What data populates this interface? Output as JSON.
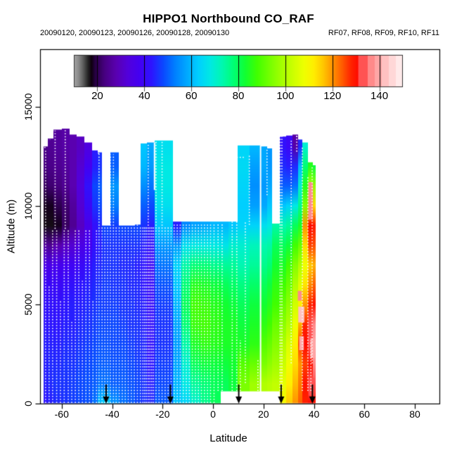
{
  "header": {
    "title": "HIPPO1 Northbound CO_RAF",
    "dates": "20090120, 20090123, 20090126, 20090128, 20090130",
    "flights": "RF07, RF08, RF09, RF10, RF11"
  },
  "axes": {
    "x": {
      "label": "Latitude",
      "ticks": [
        -60,
        -40,
        -20,
        0,
        20,
        40,
        60,
        80
      ],
      "range": [
        -68.5,
        89.7
      ]
    },
    "y": {
      "label": "Altitude (m)",
      "ticks": [
        0,
        5000,
        10000,
        15000
      ],
      "range": [
        0,
        17900
      ]
    }
  },
  "colorbar": {
    "ticks": [
      20,
      40,
      60,
      80,
      100,
      120,
      140
    ],
    "range": [
      10,
      150
    ],
    "stops": [
      [
        10,
        "#a6a6a6"
      ],
      [
        12,
        "#8a8a8a"
      ],
      [
        14,
        "#5c5c5c"
      ],
      [
        16,
        "#262626"
      ],
      [
        17.5,
        "#0d000d"
      ],
      [
        19,
        "#260040"
      ],
      [
        23,
        "#470080"
      ],
      [
        28,
        "#5a00b0"
      ],
      [
        33,
        "#5200dc"
      ],
      [
        38,
        "#4400f2"
      ],
      [
        43,
        "#2e14ff"
      ],
      [
        48,
        "#0b48ff"
      ],
      [
        53,
        "#007fff"
      ],
      [
        58,
        "#00a8ff"
      ],
      [
        63,
        "#00cfff"
      ],
      [
        68,
        "#00e9e4"
      ],
      [
        73,
        "#00f8b2"
      ],
      [
        78,
        "#00ff74"
      ],
      [
        83,
        "#12ff31"
      ],
      [
        88,
        "#41ff00"
      ],
      [
        93,
        "#72ff00"
      ],
      [
        98,
        "#a0ff00"
      ],
      [
        103,
        "#caff00"
      ],
      [
        108,
        "#efff00"
      ],
      [
        112,
        "#ffef00"
      ],
      [
        116,
        "#ffc800"
      ],
      [
        120,
        "#ff9400"
      ],
      [
        124,
        "#ff5e00"
      ],
      [
        128,
        "#ff2300"
      ],
      [
        131,
        "#ff0a00"
      ],
      [
        131.01,
        "#ff5353"
      ],
      [
        135,
        "#ff5353"
      ],
      [
        135.01,
        "#ff8a8a"
      ],
      [
        138,
        "#ff8a8a"
      ],
      [
        138.01,
        "#ffa6a6"
      ],
      [
        141,
        "#ffa6a6"
      ],
      [
        141.01,
        "#ffc1c1"
      ],
      [
        144,
        "#ffc1c1"
      ],
      [
        144.01,
        "#ffd7d7"
      ],
      [
        147,
        "#ffd7d7"
      ],
      [
        147.01,
        "#ffeaea"
      ],
      [
        150,
        "#ffeaea"
      ]
    ]
  },
  "chart_data": {
    "type": "heatmap",
    "x_name": "Latitude (deg)",
    "y_name": "Altitude (m)",
    "z_name": "CO (colorbar 10-150)",
    "alt_levels_m": [
      0,
      1000,
      2000,
      3000,
      4000,
      5000,
      6000,
      7000,
      8000,
      9000,
      10000,
      11000,
      12000,
      13000,
      14000
    ],
    "columns": [
      [
        -67.2,
        -65.5,
        13000,
        [
          43,
          44,
          44,
          44,
          43,
          42,
          40,
          36,
          26,
          17,
          18,
          21,
          23,
          24,
          null
        ]
      ],
      [
        -65.5,
        -63.2,
        13400,
        [
          44,
          45,
          45,
          44,
          43,
          42,
          40,
          36,
          25,
          17,
          18,
          22,
          24,
          25,
          null
        ]
      ],
      [
        -63.2,
        -60,
        13850,
        [
          45,
          46,
          45,
          44,
          43,
          42,
          40,
          37,
          28,
          18,
          20,
          23,
          25,
          26,
          26
        ]
      ],
      [
        -60,
        -57,
        13900,
        [
          46,
          46,
          46,
          45,
          44,
          43,
          41,
          38,
          30,
          21,
          22,
          25,
          26,
          27,
          27
        ]
      ],
      [
        -57,
        -54,
        13600,
        [
          47,
          47,
          46,
          45,
          44,
          44,
          42,
          39,
          32,
          25,
          26,
          28,
          28,
          28,
          null
        ]
      ],
      [
        -54,
        -51,
        13500,
        [
          48,
          48,
          47,
          46,
          45,
          44,
          43,
          40,
          35,
          30,
          32,
          33,
          32,
          30,
          null
        ]
      ],
      [
        -51,
        -48,
        13200,
        [
          49,
          49,
          48,
          47,
          46,
          45,
          44,
          42,
          38,
          36,
          40,
          42,
          38,
          34,
          null
        ]
      ],
      [
        -48,
        -45.6,
        12800,
        [
          52,
          50,
          49,
          48,
          47,
          46,
          45,
          44,
          42,
          42,
          46,
          48,
          44,
          null,
          null
        ]
      ],
      [
        -45.6,
        -44,
        12700,
        [
          62,
          52,
          50,
          49,
          48,
          47,
          46,
          45,
          44,
          45,
          48,
          50,
          46,
          null,
          null
        ]
      ],
      [
        -44,
        -40.6,
        9000,
        [
          64,
          52,
          50,
          49,
          48,
          47,
          47,
          46,
          46,
          48,
          null,
          null,
          null,
          null,
          null
        ]
      ],
      [
        -40.6,
        -37.4,
        12700,
        [
          56,
          50,
          49,
          48,
          48,
          47,
          46,
          46,
          46,
          47,
          53,
          56,
          50,
          null,
          null
        ]
      ],
      [
        -37.4,
        -34,
        9000,
        [
          52,
          50,
          49,
          48,
          47,
          46,
          46,
          45,
          46,
          48,
          null,
          null,
          null,
          null,
          null
        ]
      ],
      [
        -34,
        -31,
        9000,
        [
          50,
          49,
          48,
          47,
          46,
          46,
          45,
          45,
          46,
          48,
          null,
          null,
          null,
          null,
          null
        ]
      ],
      [
        -31,
        -28.8,
        9050,
        [
          48,
          48,
          47,
          46,
          46,
          45,
          45,
          44,
          46,
          48,
          null,
          null,
          null,
          null,
          null
        ]
      ],
      [
        -28.8,
        -26.1,
        13150,
        [
          46,
          46,
          45,
          45,
          44,
          44,
          43,
          43,
          44,
          46,
          50,
          55,
          60,
          62,
          null
        ]
      ],
      [
        -26.1,
        -23.2,
        13200,
        [
          45,
          44,
          43,
          42,
          42,
          41,
          41,
          40,
          42,
          44,
          48,
          52,
          56,
          58,
          null
        ]
      ],
      [
        -23.2,
        -16,
        13300,
        [
          50,
          48,
          47,
          46,
          46,
          47,
          49,
          52,
          56,
          62,
          66,
          68,
          68,
          66,
          null
        ]
      ],
      [
        -16,
        -12.5,
        9200,
        [
          62,
          60,
          58,
          57,
          58,
          60,
          62,
          64,
          56,
          44,
          null,
          null,
          null,
          null,
          null
        ]
      ],
      [
        -12.5,
        -9,
        9200,
        [
          64,
          68,
          70,
          74,
          78,
          80,
          78,
          74,
          66,
          54,
          null,
          null,
          null,
          null,
          null
        ]
      ],
      [
        -9,
        -5,
        9200,
        [
          70,
          75,
          80,
          84,
          87,
          88,
          85,
          78,
          68,
          57,
          null,
          null,
          null,
          null,
          null
        ]
      ],
      [
        -5,
        -1,
        9200,
        [
          76,
          78,
          82,
          86,
          88,
          87,
          84,
          78,
          68,
          58,
          null,
          null,
          null,
          null,
          null
        ]
      ],
      [
        -1,
        3,
        9200,
        [
          80,
          80,
          82,
          85,
          86,
          85,
          82,
          76,
          68,
          60,
          null,
          null,
          null,
          null,
          null
        ]
      ],
      [
        3,
        6,
        9200,
        [
          null,
          80,
          82,
          84,
          84,
          83,
          80,
          75,
          67,
          60,
          null,
          null,
          null,
          null,
          null
        ]
      ],
      [
        6,
        9.8,
        9200,
        [
          null,
          82,
          83,
          84,
          84,
          82,
          79,
          75,
          70,
          62,
          null,
          null,
          null,
          null,
          null
        ]
      ],
      [
        9.8,
        14.5,
        13050,
        [
          null,
          94,
          90,
          84,
          82,
          80,
          77,
          73,
          70,
          64,
          63,
          64,
          65,
          64,
          null
        ]
      ],
      [
        14.5,
        18.85,
        13050,
        [
          null,
          98,
          92,
          86,
          84,
          82,
          79,
          75,
          72,
          64,
          57,
          55,
          57,
          60,
          null
        ]
      ],
      [
        18.85,
        21.5,
        13000,
        [
          null,
          100,
          94,
          90,
          86,
          83,
          80,
          76,
          73,
          66,
          58,
          56,
          58,
          null,
          null
        ]
      ],
      [
        21.5,
        23.3,
        12900,
        [
          null,
          101,
          96,
          92,
          88,
          85,
          82,
          78,
          74,
          68,
          62,
          58,
          56,
          null,
          null
        ]
      ],
      [
        23.3,
        26.4,
        9100,
        [
          null,
          102,
          98,
          95,
          92,
          88,
          86,
          83,
          80,
          74,
          null,
          null,
          null,
          null,
          null
        ]
      ],
      [
        26.4,
        29,
        13500,
        [
          110,
          107,
          103,
          100,
          96,
          92,
          88,
          84,
          80,
          73,
          62,
          50,
          45,
          42,
          null
        ]
      ],
      [
        29,
        31.5,
        13550,
        [
          116,
          112,
          108,
          105,
          100,
          96,
          92,
          88,
          82,
          75,
          64,
          50,
          44,
          40,
          null
        ]
      ],
      [
        31.5,
        33.6,
        13600,
        [
          120,
          117,
          114,
          112,
          108,
          104,
          100,
          95,
          88,
          80,
          68,
          52,
          45,
          27,
          null
        ]
      ],
      [
        33.6,
        35.5,
        13350,
        [
          124,
          122,
          120,
          126,
          118,
          112,
          106,
          100,
          92,
          84,
          76,
          70,
          60,
          45,
          null
        ]
      ],
      [
        35.5,
        37.6,
        13200,
        [
          128,
          130,
          126,
          131,
          128,
          120,
          113,
          108,
          114,
          120,
          95,
          85,
          78,
          70,
          null
        ]
      ],
      [
        37.6,
        39.5,
        12200,
        [
          131,
          133,
          130,
          134,
          132,
          128,
          121,
          116,
          126,
          131,
          117,
          99,
          85,
          null,
          null
        ]
      ],
      [
        39.5,
        40.8,
        12050,
        [
          130,
          134,
          137,
          139,
          136,
          130,
          124,
          118,
          125,
          129,
          114,
          97,
          82,
          null,
          null
        ]
      ]
    ],
    "patches": [
      [
        33.8,
        36.2,
        4100,
        4900,
        143
      ],
      [
        34.2,
        36,
        2700,
        3400,
        139
      ],
      [
        33.6,
        35.2,
        5200,
        5700,
        136
      ],
      [
        37.8,
        39.6,
        9300,
        11200,
        137
      ],
      [
        38.6,
        40.4,
        2300,
        3300,
        141
      ],
      [
        38,
        40.2,
        400,
        1300,
        135
      ]
    ],
    "profiles": [
      [
        -66.4,
        0,
        12800
      ],
      [
        -65,
        0,
        6000
      ],
      [
        -63.6,
        0,
        8800
      ],
      [
        -62.6,
        8800,
        13800
      ],
      [
        -62,
        0,
        8800
      ],
      [
        -60.5,
        0,
        5200
      ],
      [
        -59,
        0,
        8800
      ],
      [
        -58.6,
        8800,
        13850
      ],
      [
        -57.4,
        0,
        8800
      ],
      [
        -56,
        0,
        4200
      ],
      [
        -54.6,
        0,
        8800
      ],
      [
        -53.2,
        0,
        8800
      ],
      [
        -51.8,
        0,
        6200
      ],
      [
        -50.4,
        0,
        8800
      ],
      [
        -49,
        0,
        8800
      ],
      [
        -47.6,
        0,
        5200
      ],
      [
        -46.2,
        0,
        8800
      ],
      [
        -45.2,
        0,
        12650
      ],
      [
        -44,
        0,
        8900
      ],
      [
        -42.9,
        0,
        8900
      ],
      [
        -41.8,
        0,
        8900
      ],
      [
        -40.7,
        0,
        12600
      ],
      [
        -39.5,
        0,
        12600
      ],
      [
        -38.4,
        0,
        8900
      ],
      [
        -37.2,
        0,
        8900
      ],
      [
        -36,
        0,
        8900
      ],
      [
        -34.8,
        0,
        8900
      ],
      [
        -33.6,
        0,
        8900
      ],
      [
        -32.4,
        0,
        8900
      ],
      [
        -31.2,
        0,
        8900
      ],
      [
        -30,
        0,
        13100
      ],
      [
        -28.8,
        0,
        8900
      ],
      [
        -27.8,
        0,
        8900
      ],
      [
        -27.1,
        0,
        8900
      ],
      [
        -26.4,
        0,
        8900
      ],
      [
        -25.7,
        0,
        13150
      ],
      [
        -25,
        0,
        8900
      ],
      [
        -24.3,
        0,
        8900
      ],
      [
        -23.6,
        0,
        8900
      ],
      [
        -22.6,
        0,
        13250
      ],
      [
        -21.4,
        0,
        8900
      ],
      [
        -20.2,
        0,
        13300
      ],
      [
        -19,
        0,
        8950
      ],
      [
        -17.8,
        0,
        8950
      ],
      [
        -16.6,
        0,
        8950
      ],
      [
        -15.4,
        0,
        9100
      ],
      [
        -14.2,
        0,
        9100
      ],
      [
        -13,
        0,
        9100
      ],
      [
        -11.8,
        0,
        9100
      ],
      [
        -10.6,
        0,
        9100
      ],
      [
        -9.4,
        0,
        9100
      ],
      [
        -8.2,
        0,
        9100
      ],
      [
        -7,
        0,
        9100
      ],
      [
        -5.8,
        0,
        9100
      ],
      [
        -4.6,
        0,
        9100
      ],
      [
        -3.4,
        0,
        9100
      ],
      [
        -2.2,
        0,
        9100
      ],
      [
        -1,
        0,
        9100
      ],
      [
        0.4,
        0,
        9100
      ],
      [
        2,
        600,
        9100
      ],
      [
        3.6,
        600,
        9100
      ],
      [
        7.6,
        600,
        9200
      ],
      [
        9.4,
        600,
        13050
      ],
      [
        10.8,
        600,
        3200
      ],
      [
        12.8,
        1000,
        9200
      ],
      [
        14.4,
        9000,
        12600
      ],
      [
        17.8,
        600,
        2200
      ],
      [
        21.4,
        10500,
        12900
      ],
      [
        26.6,
        600,
        13500
      ],
      [
        27.3,
        600,
        13500
      ],
      [
        31,
        2000,
        13300
      ],
      [
        33.2,
        12700,
        13550
      ],
      [
        35.4,
        600,
        13000
      ],
      [
        37.6,
        600,
        11500
      ],
      [
        38.8,
        600,
        3200
      ],
      [
        39.3,
        2000,
        12000
      ]
    ],
    "profile_segments_h": [
      [
        -66.9,
        -65.9,
        12950
      ],
      [
        -65.9,
        -64.6,
        13350
      ],
      [
        -64.6,
        -63.2,
        13800
      ],
      [
        -45.6,
        -44.6,
        12650
      ],
      [
        9.4,
        12.3,
        12450
      ],
      [
        33,
        34.2,
        13500
      ]
    ],
    "gap_lines": [
      [
        18.85,
        0,
        13050
      ],
      [
        -23.2,
        10800,
        13200
      ]
    ],
    "arrows_lat": [
      -42.4,
      -16.9,
      10.2,
      27,
      39.4
    ]
  }
}
